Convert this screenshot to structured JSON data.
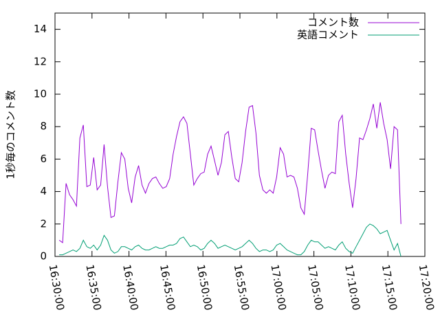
{
  "chart_data": {
    "type": "line",
    "y_label": "1秒毎のコメント数",
    "x": [
      "16:30:34",
      "16:31:02",
      "16:31:30",
      "16:31:58",
      "16:32:26",
      "16:32:54",
      "16:33:22",
      "16:33:50",
      "16:34:18",
      "16:34:46",
      "16:35:14",
      "16:35:42",
      "16:36:10",
      "16:36:38",
      "16:37:06",
      "16:37:34",
      "16:38:02",
      "16:38:30",
      "16:38:58",
      "16:39:26",
      "16:39:54",
      "16:40:22",
      "16:40:50",
      "16:41:18",
      "16:41:46",
      "16:42:14",
      "16:42:42",
      "16:43:10",
      "16:43:38",
      "16:44:06",
      "16:44:34",
      "16:45:02",
      "16:45:30",
      "16:45:58",
      "16:46:26",
      "16:46:54",
      "16:47:22",
      "16:47:50",
      "16:48:18",
      "16:48:46",
      "16:49:14",
      "16:49:42",
      "16:50:10",
      "16:50:38",
      "16:51:06",
      "16:51:34",
      "16:52:02",
      "16:52:30",
      "16:52:58",
      "16:53:26",
      "16:53:54",
      "16:54:22",
      "16:54:50",
      "16:55:18",
      "16:55:46",
      "16:56:14",
      "16:56:42",
      "16:57:10",
      "16:57:38",
      "16:58:06",
      "16:58:34",
      "16:59:02",
      "16:59:30",
      "16:59:58",
      "17:00:26",
      "17:00:54",
      "17:01:22",
      "17:01:50",
      "17:02:18",
      "17:02:46",
      "17:03:14",
      "17:03:42",
      "17:04:10",
      "17:04:38",
      "17:05:06",
      "17:05:34",
      "17:06:02",
      "17:06:30",
      "17:06:58",
      "17:07:26",
      "17:07:54",
      "17:08:22",
      "17:08:50",
      "17:09:18",
      "17:09:46",
      "17:10:14",
      "17:10:42",
      "17:11:10",
      "17:11:38",
      "17:12:06",
      "17:12:34",
      "17:13:02",
      "17:13:30",
      "17:13:58",
      "17:14:26",
      "17:14:54",
      "17:15:22",
      "17:15:50",
      "17:16:18",
      "17:16:46"
    ],
    "series": [
      {
        "name": "コメント数",
        "color": "#9400d3",
        "values": [
          1.0,
          0.85,
          4.5,
          3.8,
          3.5,
          3.1,
          7.3,
          8.1,
          4.3,
          4.4,
          6.1,
          4.1,
          4.4,
          6.9,
          4.3,
          2.4,
          2.5,
          4.6,
          6.4,
          6.0,
          4.2,
          3.3,
          4.9,
          5.6,
          4.4,
          3.9,
          4.5,
          4.8,
          4.9,
          4.5,
          4.2,
          4.3,
          4.8,
          6.3,
          7.4,
          8.3,
          8.6,
          8.2,
          6.3,
          4.4,
          4.8,
          5.1,
          5.2,
          6.3,
          6.8,
          5.9,
          5.0,
          5.8,
          7.5,
          7.7,
          6.1,
          4.8,
          4.6,
          5.8,
          7.7,
          9.2,
          9.3,
          7.6,
          5.0,
          4.1,
          3.9,
          4.1,
          3.9,
          4.9,
          6.7,
          6.3,
          4.9,
          5.0,
          4.9,
          4.2,
          3.0,
          2.6,
          5.1,
          7.9,
          7.8,
          6.5,
          5.3,
          4.2,
          5.0,
          5.2,
          5.1,
          8.3,
          8.7,
          6.3,
          4.5,
          3.0,
          4.8,
          7.3,
          7.2,
          7.8,
          8.5,
          9.4,
          7.9,
          9.5,
          8.2,
          7.2,
          5.4,
          8.0,
          7.8,
          2.0
        ]
      },
      {
        "name": "英語コメント",
        "color": "#009e73",
        "values": [
          0.1,
          0.1,
          0.2,
          0.3,
          0.4,
          0.3,
          0.5,
          1.0,
          0.6,
          0.5,
          0.7,
          0.4,
          0.7,
          1.3,
          1.0,
          0.4,
          0.2,
          0.3,
          0.6,
          0.6,
          0.5,
          0.4,
          0.6,
          0.7,
          0.5,
          0.4,
          0.4,
          0.5,
          0.6,
          0.5,
          0.5,
          0.6,
          0.7,
          0.7,
          0.8,
          1.1,
          1.2,
          0.9,
          0.6,
          0.7,
          0.6,
          0.4,
          0.5,
          0.8,
          1.0,
          0.8,
          0.5,
          0.6,
          0.7,
          0.6,
          0.5,
          0.4,
          0.5,
          0.6,
          0.8,
          1.0,
          0.8,
          0.5,
          0.3,
          0.4,
          0.4,
          0.3,
          0.4,
          0.7,
          0.8,
          0.6,
          0.4,
          0.3,
          0.2,
          0.1,
          0.1,
          0.3,
          0.7,
          1.0,
          0.9,
          0.9,
          0.7,
          0.5,
          0.6,
          0.5,
          0.4,
          0.7,
          0.9,
          0.5,
          0.3,
          0.2,
          0.6,
          1.0,
          1.4,
          1.8,
          2.0,
          1.9,
          1.7,
          1.4,
          1.5,
          1.6,
          1.0,
          0.4,
          0.8,
          0.0
        ]
      }
    ],
    "xlim": [
      "16:30:00",
      "17:20:00"
    ],
    "xticks": [
      "16:30:00",
      "16:35:00",
      "16:40:00",
      "16:45:00",
      "16:50:00",
      "16:55:00",
      "17:00:00",
      "17:05:00",
      "17:10:00",
      "17:15:00",
      "17:20:00"
    ],
    "ylim": [
      0,
      15
    ],
    "yticks": [
      0,
      2,
      4,
      6,
      8,
      10,
      12,
      14
    ],
    "legend": "top-right"
  }
}
